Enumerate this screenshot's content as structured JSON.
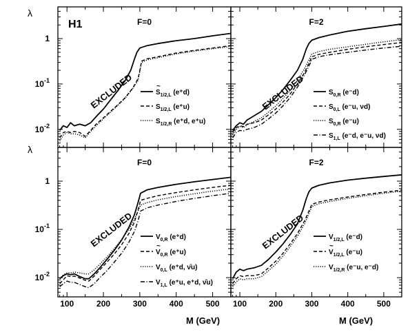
{
  "figure": {
    "logo": "H1",
    "y_symbol": "λ",
    "x_title": "M (GeV)",
    "x_ticks": [
      "100",
      "200",
      "300",
      "400",
      "500"
    ],
    "y_ticks": [
      {
        "base": "10",
        "exp": "-2"
      },
      {
        "base": "10",
        "exp": "-1"
      },
      {
        "base": "1",
        "exp": ""
      }
    ],
    "excluded_label": "EXCLUDED"
  },
  "chart_data": [
    {
      "type": "line",
      "panel": "top-left",
      "title": "F=0",
      "xlim": [
        75,
        550
      ],
      "ylim": [
        0.004,
        5
      ],
      "yscale": "log",
      "series": [
        {
          "style": "solid",
          "legend": {
            "main": "S",
            "mark": "~",
            "sub": "1/2,L",
            "sup": "",
            "rest": " (e⁺d)"
          },
          "x": [
            80,
            90,
            100,
            110,
            120,
            135,
            150,
            165,
            180,
            200,
            220,
            240,
            260,
            275,
            285,
            292,
            300,
            320,
            350,
            400,
            450,
            500,
            550
          ],
          "y": [
            0.0095,
            0.012,
            0.011,
            0.014,
            0.012,
            0.013,
            0.012,
            0.014,
            0.019,
            0.028,
            0.045,
            0.072,
            0.12,
            0.2,
            0.35,
            0.5,
            0.62,
            0.7,
            0.78,
            0.9,
            1.0,
            1.15,
            1.3
          ]
        },
        {
          "style": "dashed",
          "legend": {
            "main": "S",
            "mark": "",
            "sub": "1/2,L",
            "sup": "",
            "rest": " (e⁺u)"
          },
          "x": [
            80,
            90,
            100,
            110,
            120,
            135,
            150,
            165,
            180,
            200,
            220,
            240,
            260,
            280,
            295,
            300,
            305,
            320,
            350,
            400,
            450,
            500,
            550
          ],
          "y": [
            0.0065,
            0.0085,
            0.009,
            0.0085,
            0.009,
            0.0085,
            0.007,
            0.0095,
            0.013,
            0.018,
            0.025,
            0.035,
            0.05,
            0.08,
            0.13,
            0.2,
            0.32,
            0.36,
            0.4,
            0.48,
            0.55,
            0.62,
            0.7
          ]
        },
        {
          "style": "dotted",
          "legend": {
            "main": "S",
            "mark": "",
            "sub": "1/2,R",
            "sup": "",
            "rest": " (e⁺d, e⁺u)"
          },
          "x": [
            80,
            90,
            100,
            110,
            120,
            135,
            150,
            165,
            180,
            200,
            220,
            240,
            260,
            280,
            295,
            300,
            305,
            320,
            350,
            400,
            450,
            500,
            550
          ],
          "y": [
            0.0055,
            0.0075,
            0.0085,
            0.008,
            0.008,
            0.0075,
            0.0065,
            0.009,
            0.012,
            0.017,
            0.024,
            0.034,
            0.049,
            0.078,
            0.12,
            0.19,
            0.3,
            0.34,
            0.38,
            0.46,
            0.53,
            0.6,
            0.67
          ]
        }
      ]
    },
    {
      "type": "line",
      "panel": "top-right",
      "title": "F=2",
      "xlim": [
        75,
        550
      ],
      "ylim": [
        0.004,
        5
      ],
      "yscale": "log",
      "series": [
        {
          "style": "solid",
          "legend": {
            "main": "S",
            "mark": "",
            "sub": "0,R",
            "sup": "",
            "rest": " (e⁻d)"
          },
          "x": [
            80,
            90,
            100,
            110,
            120,
            140,
            160,
            180,
            200,
            220,
            240,
            260,
            275,
            285,
            292,
            300,
            320,
            350,
            400,
            450,
            500,
            550
          ],
          "y": [
            0.0095,
            0.012,
            0.014,
            0.013,
            0.016,
            0.02,
            0.025,
            0.035,
            0.05,
            0.075,
            0.12,
            0.2,
            0.35,
            0.6,
            0.78,
            0.92,
            1.05,
            1.2,
            1.45,
            1.65,
            1.85,
            2.1
          ]
        },
        {
          "style": "dashed",
          "legend": {
            "main": "S",
            "mark": "",
            "sub": "0,L",
            "sup": "",
            "rest": " (e⁻u, νd)"
          },
          "x": [
            80,
            90,
            100,
            110,
            120,
            140,
            160,
            180,
            200,
            220,
            240,
            260,
            280,
            295,
            300,
            320,
            350,
            400,
            450,
            500,
            550
          ],
          "y": [
            0.0085,
            0.011,
            0.012,
            0.0115,
            0.013,
            0.014,
            0.016,
            0.021,
            0.028,
            0.04,
            0.06,
            0.1,
            0.18,
            0.32,
            0.4,
            0.45,
            0.5,
            0.58,
            0.66,
            0.74,
            0.82
          ]
        },
        {
          "style": "dotted",
          "legend": {
            "main": "S",
            "mark": "",
            "sub": "0,R",
            "sup": "",
            "rest": " (e⁻u)"
          },
          "x": [
            80,
            90,
            100,
            110,
            120,
            140,
            160,
            180,
            200,
            220,
            240,
            260,
            280,
            295,
            300,
            320,
            350,
            400,
            450,
            500,
            550
          ],
          "y": [
            0.0075,
            0.01,
            0.0115,
            0.011,
            0.0125,
            0.015,
            0.018,
            0.024,
            0.033,
            0.048,
            0.072,
            0.12,
            0.22,
            0.38,
            0.46,
            0.52,
            0.58,
            0.66,
            0.75,
            0.85,
            0.95
          ]
        },
        {
          "style": "dashdot",
          "legend": {
            "main": "S",
            "mark": "",
            "sub": "1,L",
            "sup": "",
            "rest": " (e⁻d, e⁻u, νd)"
          },
          "x": [
            80,
            90,
            100,
            110,
            120,
            140,
            160,
            180,
            200,
            220,
            240,
            260,
            280,
            295,
            300,
            320,
            350,
            400,
            450,
            500,
            550
          ],
          "y": [
            0.0065,
            0.0085,
            0.0095,
            0.0092,
            0.01,
            0.011,
            0.013,
            0.017,
            0.023,
            0.033,
            0.05,
            0.085,
            0.16,
            0.28,
            0.35,
            0.4,
            0.44,
            0.5,
            0.56,
            0.62,
            0.68
          ]
        }
      ]
    },
    {
      "type": "line",
      "panel": "bottom-left",
      "title": "F=0",
      "xlim": [
        75,
        550
      ],
      "ylim": [
        0.004,
        5
      ],
      "yscale": "log",
      "series": [
        {
          "style": "solid",
          "legend": {
            "main": "V",
            "mark": "",
            "sub": "0,R",
            "sup": "",
            "rest": " (e⁺d)"
          },
          "x": [
            80,
            90,
            100,
            110,
            120,
            135,
            150,
            160,
            175,
            190,
            210,
            230,
            250,
            270,
            285,
            295,
            302,
            320,
            350,
            400,
            450,
            500,
            550
          ],
          "y": [
            0.0095,
            0.011,
            0.012,
            0.0115,
            0.012,
            0.0105,
            0.0095,
            0.0095,
            0.012,
            0.016,
            0.024,
            0.037,
            0.06,
            0.11,
            0.2,
            0.36,
            0.56,
            0.66,
            0.74,
            0.86,
            0.97,
            1.08,
            1.2
          ]
        },
        {
          "style": "dashed",
          "legend": {
            "main": "V",
            "mark": "~",
            "sub": "0,R",
            "sup": "",
            "rest": " (e⁺u)"
          },
          "x": [
            80,
            90,
            100,
            110,
            120,
            135,
            150,
            160,
            175,
            190,
            210,
            230,
            250,
            270,
            285,
            295,
            302,
            320,
            350,
            400,
            450,
            500,
            550
          ],
          "y": [
            0.0075,
            0.009,
            0.011,
            0.0105,
            0.0108,
            0.0098,
            0.0088,
            0.0085,
            0.0108,
            0.0145,
            0.021,
            0.031,
            0.048,
            0.082,
            0.14,
            0.25,
            0.4,
            0.44,
            0.5,
            0.58,
            0.66,
            0.74,
            0.82
          ]
        },
        {
          "style": "dotted",
          "legend": {
            "main": "V",
            "mark": "",
            "sub": "0,L",
            "sup": "",
            "rest": " (e⁺d, ν̄u)"
          },
          "x": [
            80,
            90,
            100,
            110,
            120,
            135,
            150,
            160,
            175,
            190,
            210,
            230,
            250,
            270,
            285,
            295,
            302,
            320,
            350,
            400,
            450,
            500,
            550
          ],
          "y": [
            0.0095,
            0.0115,
            0.0125,
            0.0125,
            0.013,
            0.0125,
            0.012,
            0.012,
            0.0145,
            0.019,
            0.027,
            0.04,
            0.062,
            0.1,
            0.16,
            0.24,
            0.32,
            0.36,
            0.41,
            0.48,
            0.55,
            0.62,
            0.69
          ]
        },
        {
          "style": "dashdot",
          "legend": {
            "main": "V",
            "mark": "",
            "sub": "1,L",
            "sup": "",
            "rest": " (e⁺u, e⁺d, ν̄u)"
          },
          "x": [
            80,
            90,
            100,
            110,
            120,
            135,
            150,
            160,
            175,
            190,
            210,
            230,
            250,
            270,
            285,
            295,
            302,
            320,
            350,
            400,
            450,
            500,
            550
          ],
          "y": [
            0.0065,
            0.0075,
            0.0085,
            0.008,
            0.008,
            0.0072,
            0.0065,
            0.0062,
            0.0075,
            0.01,
            0.014,
            0.021,
            0.032,
            0.054,
            0.09,
            0.15,
            0.24,
            0.28,
            0.32,
            0.38,
            0.44,
            0.5,
            0.56
          ]
        }
      ]
    },
    {
      "type": "line",
      "panel": "bottom-right",
      "title": "F=2",
      "xlim": [
        75,
        550
      ],
      "ylim": [
        0.004,
        5
      ],
      "yscale": "log",
      "series": [
        {
          "style": "solid",
          "legend": {
            "main": "V",
            "mark": "",
            "sub": "1/2,L",
            "sup": "",
            "rest": " (e⁻d)"
          },
          "x": [
            80,
            90,
            100,
            110,
            120,
            140,
            160,
            180,
            200,
            220,
            240,
            260,
            275,
            285,
            292,
            300,
            320,
            350,
            400,
            450,
            500,
            550
          ],
          "y": [
            0.0095,
            0.013,
            0.015,
            0.014,
            0.015,
            0.016,
            0.018,
            0.024,
            0.034,
            0.05,
            0.078,
            0.13,
            0.25,
            0.44,
            0.6,
            0.72,
            0.82,
            0.92,
            1.05,
            1.15,
            1.25,
            1.35
          ]
        },
        {
          "style": "dashed",
          "legend": {
            "main": "V",
            "mark": "~",
            "sub": "1/2,L",
            "sup": "",
            "rest": " (e⁻u)"
          },
          "x": [
            80,
            90,
            100,
            110,
            120,
            140,
            160,
            180,
            200,
            220,
            240,
            260,
            280,
            295,
            300,
            320,
            350,
            400,
            450,
            500,
            550
          ],
          "y": [
            0.0075,
            0.0095,
            0.011,
            0.0105,
            0.011,
            0.011,
            0.012,
            0.016,
            0.022,
            0.032,
            0.05,
            0.082,
            0.15,
            0.27,
            0.33,
            0.37,
            0.41,
            0.47,
            0.53,
            0.59,
            0.65
          ]
        },
        {
          "style": "dotted",
          "legend": {
            "main": "V",
            "mark": "",
            "sub": "1/2,R",
            "sup": "",
            "rest": " (e⁻u, e⁻d)"
          },
          "x": [
            80,
            90,
            100,
            110,
            120,
            140,
            160,
            180,
            200,
            220,
            240,
            260,
            280,
            295,
            300,
            320,
            350,
            400,
            450,
            500,
            550
          ],
          "y": [
            0.0065,
            0.0082,
            0.0095,
            0.009,
            0.0095,
            0.0095,
            0.0105,
            0.014,
            0.019,
            0.028,
            0.044,
            0.072,
            0.13,
            0.24,
            0.3,
            0.34,
            0.38,
            0.44,
            0.5,
            0.56,
            0.62
          ]
        }
      ]
    }
  ]
}
